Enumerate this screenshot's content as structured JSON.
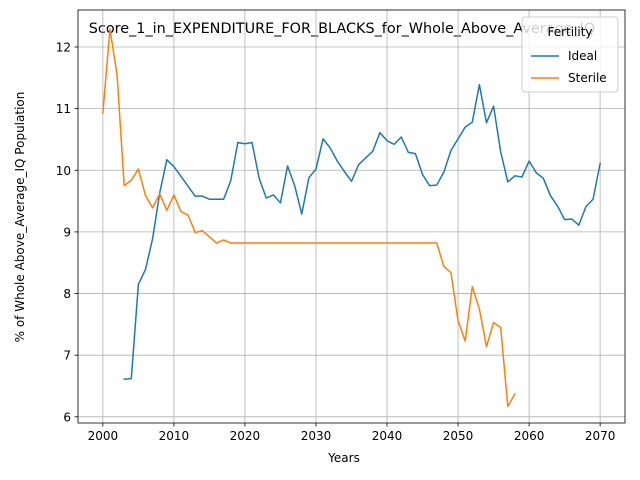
{
  "chart_data": {
    "type": "line",
    "title": "Score_1_in_EXPENDITURE_FOR_BLACKS_for_Whole_Above_Average_IQ",
    "xlabel": "Years",
    "ylabel": "% of Whole Above_Average_IQ Population",
    "xlim": [
      1996.5,
      2073.5
    ],
    "ylim": [
      5.9,
      12.6
    ],
    "xticks": [
      2000,
      2010,
      2020,
      2030,
      2040,
      2050,
      2060,
      2070
    ],
    "yticks": [
      6,
      7,
      8,
      9,
      10,
      11,
      12
    ],
    "grid": true,
    "legend": {
      "title": "Fertility",
      "placement": "top-right"
    },
    "series": [
      {
        "name": "Ideal",
        "color": "#1f77b4",
        "x": [
          2003,
          2004,
          2005,
          2006,
          2007,
          2008,
          2009,
          2010,
          2011,
          2012,
          2013,
          2014,
          2015,
          2016,
          2017,
          2018,
          2019,
          2020,
          2021,
          2022,
          2023,
          2024,
          2025,
          2026,
          2027,
          2028,
          2029,
          2030,
          2031,
          2032,
          2033,
          2034,
          2035,
          2036,
          2037,
          2038,
          2039,
          2040,
          2041,
          2042,
          2043,
          2044,
          2045,
          2046,
          2047,
          2048,
          2049,
          2050,
          2051,
          2052,
          2053,
          2054,
          2055,
          2056,
          2057,
          2058,
          2059,
          2060,
          2061,
          2062,
          2063,
          2064,
          2065,
          2066,
          2067,
          2068,
          2069,
          2070
        ],
        "y": [
          6.61,
          6.62,
          8.15,
          8.39,
          8.89,
          9.63,
          10.17,
          10.06,
          9.9,
          9.74,
          9.58,
          9.58,
          9.53,
          9.53,
          9.53,
          9.83,
          10.45,
          10.43,
          10.45,
          9.87,
          9.55,
          9.6,
          9.47,
          10.07,
          9.75,
          9.29,
          9.88,
          10.02,
          10.51,
          10.36,
          10.15,
          9.98,
          9.82,
          10.09,
          10.2,
          10.31,
          10.61,
          10.48,
          10.42,
          10.54,
          10.29,
          10.27,
          9.93,
          9.75,
          9.76,
          9.97,
          10.32,
          10.51,
          10.7,
          10.78,
          11.39,
          10.77,
          11.04,
          10.3,
          9.81,
          9.91,
          9.89,
          10.15,
          9.96,
          9.87,
          9.59,
          9.42,
          9.2,
          9.21,
          9.11,
          9.41,
          9.53,
          10.11
        ]
      },
      {
        "name": "Sterile",
        "color": "#ff7f0e",
        "x": [
          2000,
          2001,
          2002,
          2003,
          2004,
          2005,
          2006,
          2007,
          2008,
          2009,
          2010,
          2011,
          2012,
          2013,
          2014,
          2015,
          2016,
          2017,
          2018,
          2019,
          2020,
          2021,
          2022,
          2023,
          2024,
          2025,
          2026,
          2027,
          2028,
          2029,
          2030,
          2031,
          2032,
          2033,
          2034,
          2035,
          2036,
          2037,
          2038,
          2039,
          2040,
          2041,
          2042,
          2043,
          2044,
          2045,
          2046,
          2047,
          2048,
          2049,
          2050,
          2051,
          2052,
          2053,
          2054,
          2055,
          2056,
          2057,
          2058
        ],
        "y": [
          10.93,
          12.29,
          11.55,
          9.75,
          9.84,
          10.02,
          9.59,
          9.39,
          9.62,
          9.35,
          9.6,
          9.33,
          9.27,
          8.99,
          9.02,
          8.92,
          8.82,
          8.87,
          8.82,
          8.82,
          8.82,
          8.82,
          8.82,
          8.82,
          8.82,
          8.82,
          8.82,
          8.82,
          8.82,
          8.82,
          8.82,
          8.82,
          8.82,
          8.82,
          8.82,
          8.82,
          8.82,
          8.82,
          8.82,
          8.82,
          8.82,
          8.82,
          8.82,
          8.82,
          8.82,
          8.82,
          8.82,
          8.82,
          8.44,
          8.34,
          7.56,
          7.23,
          8.11,
          7.75,
          7.14,
          7.53,
          7.45,
          6.17,
          6.37
        ]
      }
    ]
  }
}
